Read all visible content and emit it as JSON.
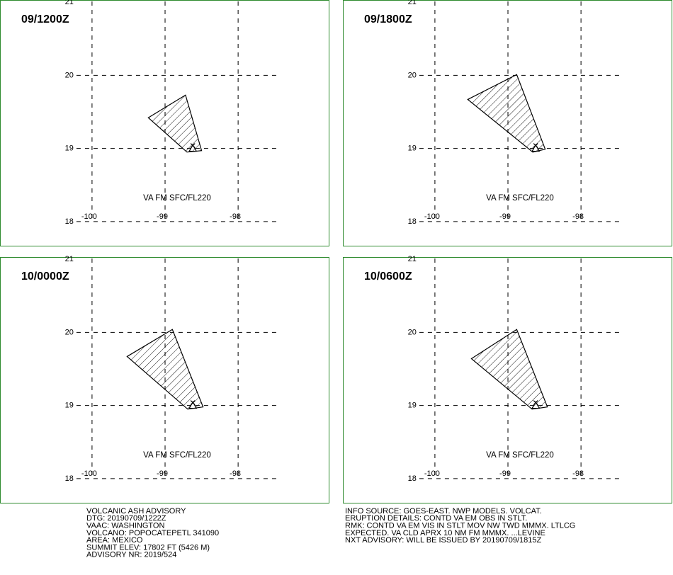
{
  "lon_range": [
    -101.26,
    -96.75
  ],
  "lat_range": [
    17.66,
    21.03
  ],
  "lat_ticks": [
    18,
    19,
    20,
    21
  ],
  "lon_ticks": [
    -100,
    -99,
    -98
  ],
  "volcano": {
    "lat": 19.02,
    "lon": -98.62
  },
  "layer": "VA FM SFC/FL220",
  "panels": [
    {
      "time": "09/1200Z",
      "polygon_lat": [
        19.42,
        19.73,
        18.97,
        18.95
      ],
      "polygon_lon": [
        -99.23,
        -98.72,
        -98.5,
        -98.7
      ]
    },
    {
      "time": "09/1800Z",
      "polygon_lat": [
        19.67,
        20.01,
        18.99,
        18.95
      ],
      "polygon_lon": [
        -99.55,
        -98.88,
        -98.49,
        -98.66
      ]
    },
    {
      "time": "10/0000Z",
      "polygon_lat": [
        19.67,
        20.04,
        18.98,
        18.95
      ],
      "polygon_lon": [
        -99.52,
        -98.9,
        -98.48,
        -98.69
      ]
    },
    {
      "time": "10/0600Z",
      "polygon_lat": [
        19.64,
        20.04,
        18.98,
        18.95
      ],
      "polygon_lon": [
        -99.5,
        -98.88,
        -98.46,
        -98.67
      ]
    }
  ],
  "advisory_left": [
    "VOLCANIC ASH ADVISORY",
    "DTG: 20190709/1222Z",
    "VAAC: WASHINGTON",
    "VOLCANO: POPOCATEPETL 341090",
    "AREA: MEXICO",
    "SUMMIT ELEV: 17802 FT (5426 M)",
    "ADVISORY NR: 2019/524"
  ],
  "advisory_right": [
    "INFO SOURCE: GOES-EAST. NWP MODELS. VOLCAT.",
    "ERUPTION DETAILS: CONTD VA EM OBS IN STLT.",
    "RMK: CONTD VA EM VIS IN STLT MOV NW TWD MMMX. LTLCG",
    "EXPECTED. VA CLD APRX 10 NM FM MMMX. ...LEVINE",
    "NXT ADVISORY: WILL BE ISSUED BY 20190709/1815Z"
  ]
}
